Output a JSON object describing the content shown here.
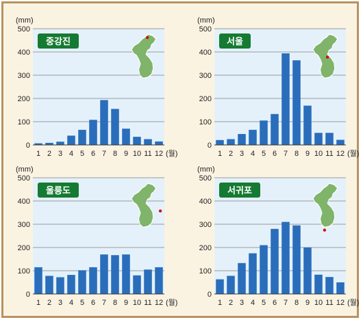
{
  "colors": {
    "bar": "#2a6dbb",
    "plot_bg": "#e4f1fb",
    "label_bg": "#157a32",
    "label_text": "#ffffff",
    "frame_bg": "#fbf3e2",
    "frame_border": "#b99161",
    "map_land": "#7fb46a",
    "city_dot": "#d01010"
  },
  "chart_data": [
    {
      "type": "bar",
      "title": "중강진",
      "ylabel": "(mm)",
      "xlabel": "(월)",
      "categories": [
        "1",
        "2",
        "3",
        "4",
        "5",
        "6",
        "7",
        "8",
        "9",
        "10",
        "11",
        "12"
      ],
      "ylim": [
        0,
        500
      ],
      "yticks": [
        0,
        100,
        200,
        300,
        400,
        500
      ],
      "values": [
        7,
        9,
        14,
        40,
        65,
        108,
        193,
        155,
        70,
        35,
        25,
        15
      ],
      "grid": true
    },
    {
      "type": "bar",
      "title": "서울",
      "ylabel": "(mm)",
      "xlabel": "(월)",
      "categories": [
        "1",
        "2",
        "3",
        "4",
        "5",
        "6",
        "7",
        "8",
        "9",
        "10",
        "11",
        "12"
      ],
      "ylim": [
        0,
        500
      ],
      "yticks": [
        0,
        100,
        200,
        300,
        400,
        500
      ],
      "values": [
        21,
        25,
        47,
        65,
        105,
        133,
        394,
        364,
        169,
        52,
        52,
        22
      ],
      "grid": true
    },
    {
      "type": "bar",
      "title": "울릉도",
      "ylabel": "(mm)",
      "xlabel": "(월)",
      "categories": [
        "1",
        "2",
        "3",
        "4",
        "5",
        "6",
        "7",
        "8",
        "9",
        "10",
        "11",
        "12"
      ],
      "ylim": [
        0,
        500
      ],
      "yticks": [
        0,
        100,
        200,
        300,
        400,
        500
      ],
      "values": [
        115,
        78,
        72,
        82,
        102,
        115,
        170,
        167,
        170,
        80,
        105,
        115
      ],
      "grid": true
    },
    {
      "type": "bar",
      "title": "서귀포",
      "ylabel": "(mm)",
      "xlabel": "(월)",
      "categories": [
        "1",
        "2",
        "3",
        "4",
        "5",
        "6",
        "7",
        "8",
        "9",
        "10",
        "11",
        "12"
      ],
      "ylim": [
        0,
        500
      ],
      "yticks": [
        0,
        100,
        200,
        300,
        400,
        500
      ],
      "values": [
        63,
        78,
        133,
        175,
        210,
        280,
        310,
        295,
        200,
        83,
        73,
        50
      ],
      "grid": true
    }
  ]
}
